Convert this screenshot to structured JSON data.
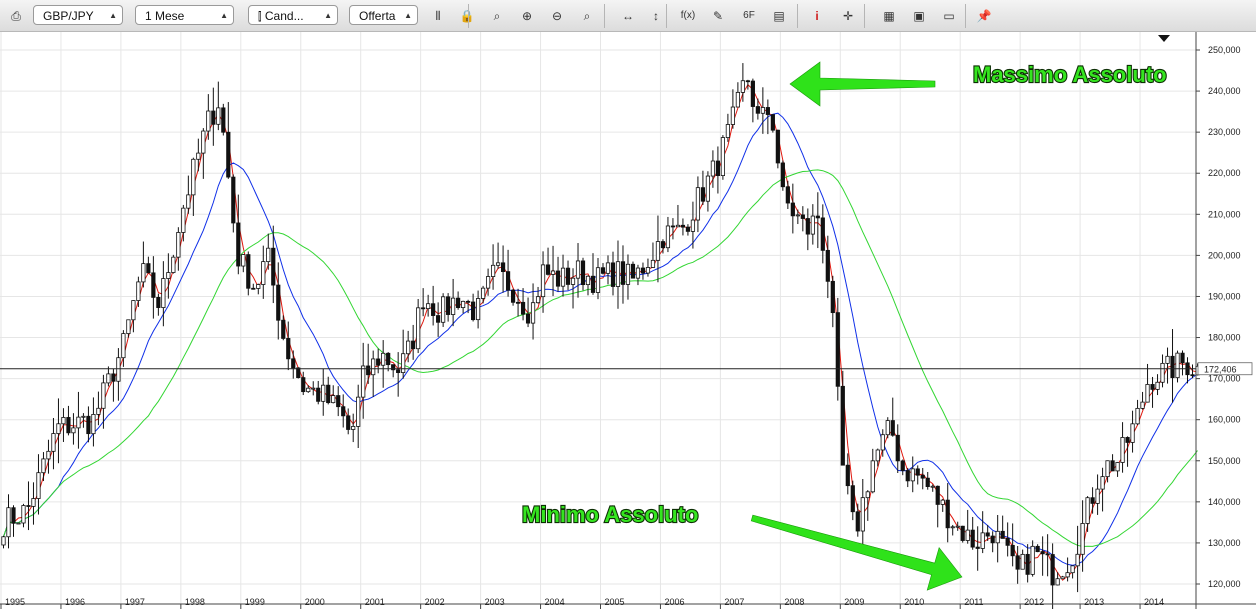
{
  "toolbar": {
    "printer_icon": "printer-icon",
    "symbol": "GBP/JPY",
    "period": "1 Mese",
    "chart_type": "Cand...",
    "price_side": "Offerta",
    "tools": [
      {
        "name": "bar-chart-icon",
        "glyph": "⫴"
      },
      {
        "name": "lock-icon",
        "glyph": "🔒"
      },
      {
        "name": "zoom-icon",
        "glyph": "⌕"
      },
      {
        "name": "zoom-in-icon",
        "glyph": "⊕"
      },
      {
        "name": "zoom-out-icon",
        "glyph": "⊖"
      },
      {
        "name": "zoom-fit-icon",
        "glyph": "⌕"
      },
      {
        "name": "scroll-horizontal-icon",
        "glyph": "↔"
      },
      {
        "name": "scroll-vertical-icon",
        "glyph": "↕"
      },
      {
        "name": "indicator-fx-icon",
        "glyph": "f(x)"
      },
      {
        "name": "drawing-tools-icon",
        "glyph": "✎"
      },
      {
        "name": "object-settings-icon",
        "glyph": "6F"
      },
      {
        "name": "notes-icon",
        "glyph": "▤"
      },
      {
        "name": "info-icon",
        "glyph": "i"
      },
      {
        "name": "crosshair-icon",
        "glyph": "✛"
      },
      {
        "name": "grid-icon",
        "glyph": "▦"
      },
      {
        "name": "save-icon",
        "glyph": "▣"
      },
      {
        "name": "window-icon",
        "glyph": "▭"
      },
      {
        "name": "pin-icon",
        "glyph": "📌"
      }
    ]
  },
  "chart_data": {
    "type": "candlestick",
    "symbol": "GBP/JPY",
    "interval": "1 Mese",
    "y_range": [
      116,
      252
    ],
    "x_range": [
      1995.0,
      2014.95
    ],
    "y_ticks": [
      "120,000",
      "130,000",
      "140,000",
      "150,000",
      "160,000",
      "170,000",
      "180,000",
      "190,000",
      "200,000",
      "210,000",
      "220,000",
      "230,000",
      "240,000",
      "250,000"
    ],
    "x_ticks": [
      "1995",
      "1996",
      "1997",
      "1998",
      "1999",
      "2000",
      "2001",
      "2002",
      "2003",
      "2004",
      "2005",
      "2006",
      "2007",
      "2008",
      "2009",
      "2010",
      "2011",
      "2012",
      "2013",
      "2014"
    ],
    "current_price": 172.406,
    "current_price_label": "172,406",
    "price_anchors": [
      [
        1995.0,
        135
      ],
      [
        1995.4,
        138
      ],
      [
        1995.9,
        158
      ],
      [
        1996.5,
        160
      ],
      [
        1997.0,
        178
      ],
      [
        1997.3,
        196
      ],
      [
        1997.6,
        188
      ],
      [
        1998.0,
        212
      ],
      [
        1998.4,
        232
      ],
      [
        1998.6,
        238
      ],
      [
        1998.9,
        200
      ],
      [
        1999.2,
        192
      ],
      [
        1999.4,
        200
      ],
      [
        1999.7,
        178
      ],
      [
        2000.0,
        168
      ],
      [
        2000.3,
        166
      ],
      [
        2000.6,
        162
      ],
      [
        2000.8,
        156
      ],
      [
        2001.0,
        170
      ],
      [
        2001.3,
        176
      ],
      [
        2001.6,
        172
      ],
      [
        2001.8,
        178
      ],
      [
        2002.0,
        190
      ],
      [
        2002.3,
        186
      ],
      [
        2002.6,
        190
      ],
      [
        2002.9,
        186
      ],
      [
        2003.2,
        196
      ],
      [
        2003.5,
        192
      ],
      [
        2003.8,
        186
      ],
      [
        2004.0,
        196
      ],
      [
        2004.3,
        194
      ],
      [
        2004.6,
        196
      ],
      [
        2004.9,
        194
      ],
      [
        2005.2,
        196
      ],
      [
        2005.5,
        194
      ],
      [
        2005.8,
        200
      ],
      [
        2006.0,
        205
      ],
      [
        2006.3,
        206
      ],
      [
        2006.6,
        214
      ],
      [
        2006.9,
        222
      ],
      [
        2007.2,
        234
      ],
      [
        2007.4,
        244
      ],
      [
        2007.6,
        232
      ],
      [
        2007.8,
        236
      ],
      [
        2008.0,
        214
      ],
      [
        2008.2,
        210
      ],
      [
        2008.4,
        206
      ],
      [
        2008.6,
        210
      ],
      [
        2008.8,
        190
      ],
      [
        2008.9,
        168
      ],
      [
        2009.0,
        148
      ],
      [
        2009.2,
        132
      ],
      [
        2009.5,
        150
      ],
      [
        2009.8,
        158
      ],
      [
        2010.0,
        148
      ],
      [
        2010.3,
        146
      ],
      [
        2010.6,
        140
      ],
      [
        2010.9,
        134
      ],
      [
        2011.2,
        130
      ],
      [
        2011.5,
        133
      ],
      [
        2011.7,
        128
      ],
      [
        2011.9,
        122
      ],
      [
        2012.2,
        128
      ],
      [
        2012.5,
        123
      ],
      [
        2012.8,
        126
      ],
      [
        2013.0,
        134
      ],
      [
        2013.3,
        148
      ],
      [
        2013.6,
        150
      ],
      [
        2013.9,
        160
      ],
      [
        2014.1,
        170
      ],
      [
        2014.4,
        172
      ],
      [
        2014.7,
        174
      ],
      [
        2014.95,
        172
      ]
    ],
    "moving_averages": [
      {
        "color": "#e0190f",
        "period_months": 3
      },
      {
        "color": "#1030e8",
        "period_months": 12
      },
      {
        "color": "#33d633",
        "period_months": 30
      }
    ],
    "candle_colors": {
      "body": "#111111",
      "wick": "#111111",
      "up_fill": "#ffffff",
      "down_fill": "#111111"
    },
    "annotations": [
      {
        "text": "Massimo Assoluto",
        "arrow_to": [
          2007.4,
          243
        ]
      },
      {
        "text": "Minimo Assoluto",
        "arrow_to": [
          2011.9,
          119
        ]
      }
    ]
  }
}
